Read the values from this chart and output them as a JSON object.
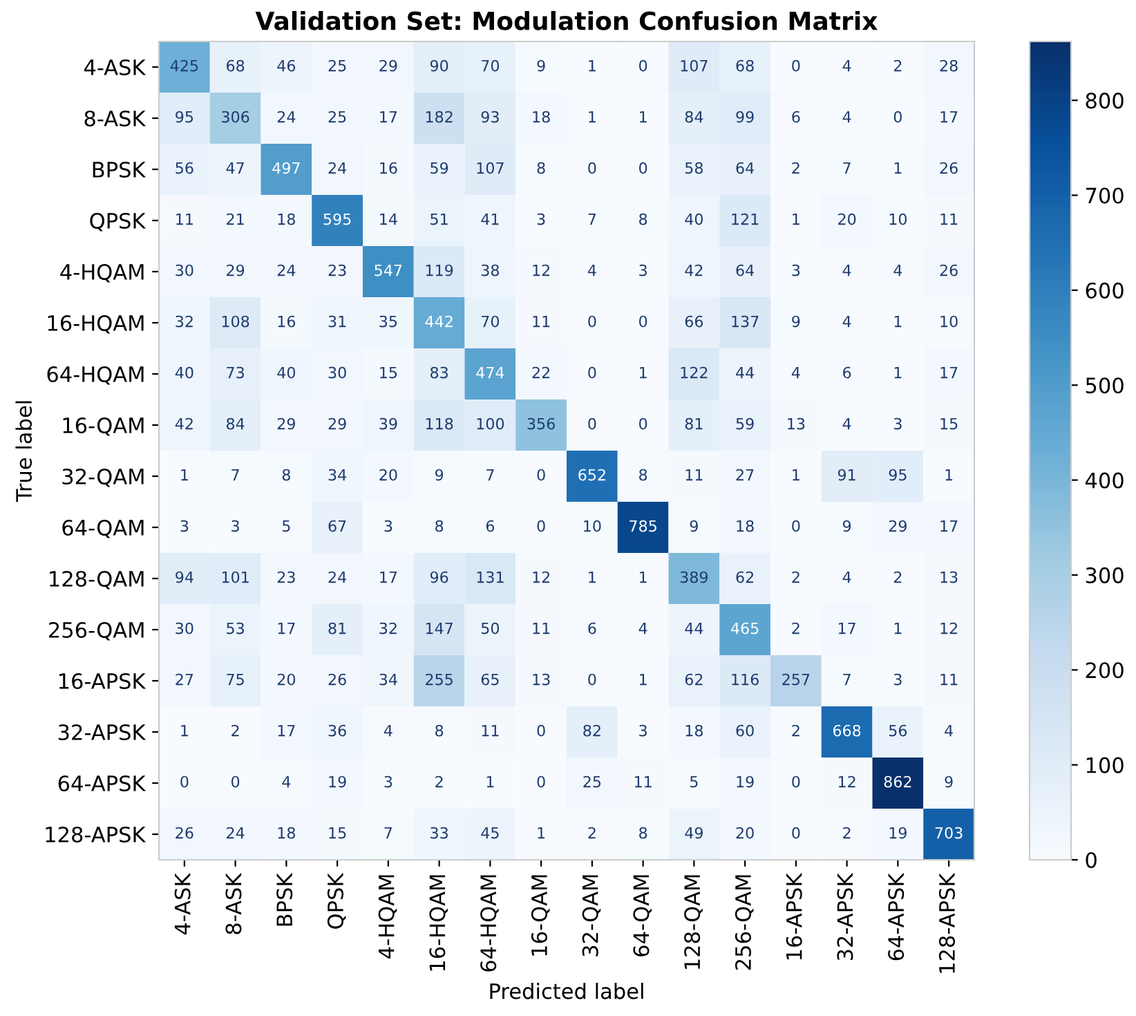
{
  "chart_data": {
    "type": "heatmap",
    "title": "Validation Set: Modulation Confusion Matrix",
    "xlabel": "Predicted label",
    "ylabel": "True label",
    "categories": [
      "4-ASK",
      "8-ASK",
      "BPSK",
      "QPSK",
      "4-HQAM",
      "16-HQAM",
      "64-HQAM",
      "16-QAM",
      "32-QAM",
      "64-QAM",
      "128-QAM",
      "256-QAM",
      "16-APSK",
      "32-APSK",
      "64-APSK",
      "128-APSK"
    ],
    "y_categories": [
      "4-ASK",
      "8-ASK",
      "BPSK",
      "QPSK",
      "4-HQAM",
      "16-HQAM",
      "64-HQAM",
      "16-QAM",
      "32-QAM",
      "64-QAM",
      "128-QAM",
      "256-QAM",
      "16-APSK",
      "32-APSK",
      "64-APSK",
      "128-APSK"
    ],
    "cells": [
      [
        425,
        68,
        46,
        25,
        29,
        90,
        70,
        9,
        1,
        0,
        107,
        68,
        0,
        4,
        2,
        28
      ],
      [
        95,
        306,
        24,
        25,
        17,
        182,
        93,
        18,
        1,
        1,
        84,
        99,
        6,
        4,
        0,
        17
      ],
      [
        56,
        47,
        497,
        24,
        16,
        59,
        107,
        8,
        0,
        0,
        58,
        64,
        2,
        7,
        1,
        26
      ],
      [
        11,
        21,
        18,
        595,
        14,
        51,
        41,
        3,
        7,
        8,
        40,
        121,
        1,
        20,
        10,
        11
      ],
      [
        30,
        29,
        24,
        23,
        547,
        119,
        38,
        12,
        4,
        3,
        42,
        64,
        3,
        4,
        4,
        26
      ],
      [
        32,
        108,
        16,
        31,
        35,
        442,
        70,
        11,
        0,
        0,
        66,
        137,
        9,
        4,
        1,
        10
      ],
      [
        40,
        73,
        40,
        30,
        15,
        83,
        474,
        22,
        0,
        1,
        122,
        44,
        4,
        6,
        1,
        17
      ],
      [
        42,
        84,
        29,
        29,
        39,
        118,
        100,
        356,
        0,
        0,
        81,
        59,
        13,
        4,
        3,
        15
      ],
      [
        1,
        7,
        8,
        34,
        20,
        9,
        7,
        0,
        652,
        8,
        11,
        27,
        1,
        91,
        95,
        1
      ],
      [
        3,
        3,
        5,
        67,
        3,
        8,
        6,
        0,
        10,
        785,
        9,
        18,
        0,
        9,
        29,
        17
      ],
      [
        94,
        101,
        23,
        24,
        17,
        96,
        131,
        12,
        1,
        1,
        389,
        62,
        2,
        4,
        2,
        13
      ],
      [
        30,
        53,
        17,
        81,
        32,
        147,
        50,
        11,
        6,
        4,
        44,
        465,
        2,
        17,
        1,
        12
      ],
      [
        27,
        75,
        20,
        26,
        34,
        255,
        65,
        13,
        0,
        1,
        62,
        116,
        257,
        7,
        3,
        11
      ],
      [
        1,
        2,
        17,
        36,
        4,
        8,
        11,
        0,
        82,
        3,
        18,
        60,
        2,
        668,
        56,
        4
      ],
      [
        0,
        0,
        4,
        19,
        3,
        2,
        1,
        0,
        25,
        11,
        5,
        19,
        0,
        12,
        862,
        9
      ],
      [
        26,
        24,
        18,
        15,
        7,
        33,
        45,
        1,
        2,
        8,
        49,
        20,
        0,
        2,
        19,
        703
      ]
    ],
    "clim": [
      0,
      862
    ],
    "cticks": [
      0,
      100,
      200,
      300,
      400,
      500,
      600,
      700,
      800
    ],
    "data_labels": true,
    "grid": false
  }
}
